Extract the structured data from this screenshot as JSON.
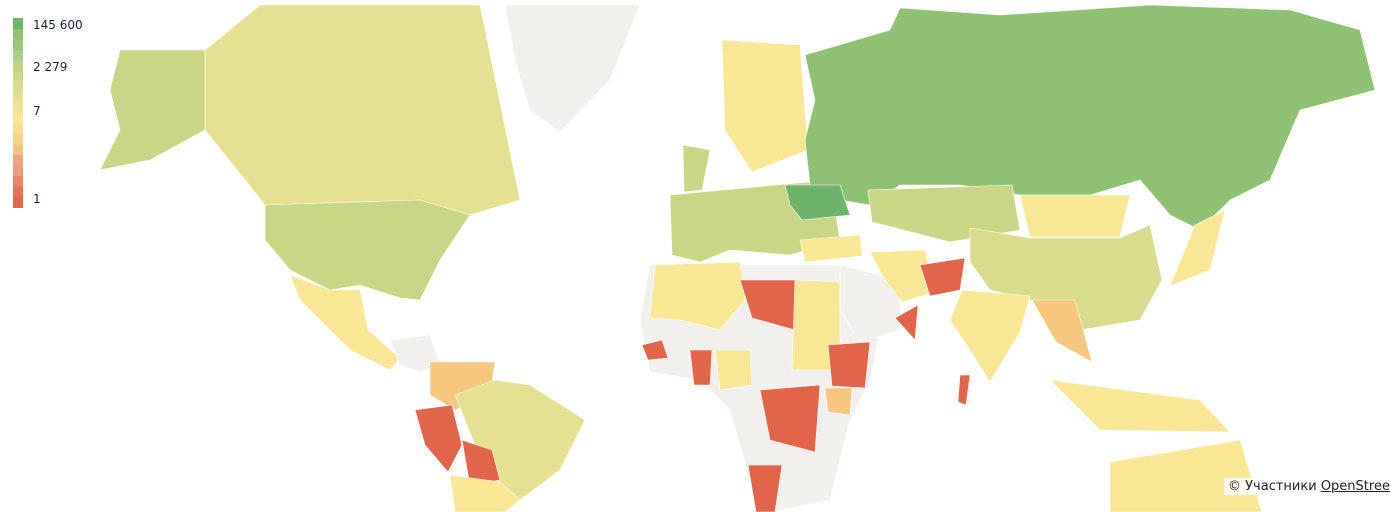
{
  "legend": {
    "labels": [
      "145 600",
      "2 279",
      "7",
      "1"
    ],
    "colors": [
      "#6db36a",
      "#8fc173",
      "#9dc67c",
      "#aacd89",
      "#bfd283",
      "#cbd78a",
      "#d8dc8e",
      "#e4df92",
      "#ede296",
      "#f9e796",
      "#fcdf8a",
      "#fbd487",
      "#f7c383",
      "#f0a47f",
      "#ee9a7c",
      "#ea8568",
      "#e6705a",
      "#e2644b"
    ]
  },
  "palette": {
    "dark_green": "#6db36a",
    "green": "#8fc173",
    "light_green": "#c9d686",
    "olive": "#d9dc8c",
    "yellow_green": "#e6e191",
    "yellow": "#f9e796",
    "orange": "#f7c67f",
    "red": "#e2654a",
    "no_data": "#f1f0ed"
  },
  "regions": [
    {
      "id": "russia",
      "level": "green"
    },
    {
      "id": "greenland",
      "level": "no_data"
    },
    {
      "id": "canada",
      "level": "yellow_green"
    },
    {
      "id": "alaska",
      "level": "light_green"
    },
    {
      "id": "usa",
      "level": "light_green"
    },
    {
      "id": "mexico",
      "level": "yellow"
    },
    {
      "id": "central-america",
      "level": "no_data"
    },
    {
      "id": "colombia-venezuela",
      "level": "orange"
    },
    {
      "id": "brazil",
      "level": "yellow_green"
    },
    {
      "id": "peru",
      "level": "red"
    },
    {
      "id": "bolivia",
      "level": "red"
    },
    {
      "id": "southern-cone",
      "level": "yellow"
    },
    {
      "id": "africa",
      "level": "no_data"
    },
    {
      "id": "north-africa",
      "level": "yellow"
    },
    {
      "id": "libya",
      "level": "red"
    },
    {
      "id": "sudan",
      "level": "yellow"
    },
    {
      "id": "ethiopia",
      "level": "red"
    },
    {
      "id": "nigeria",
      "level": "yellow"
    },
    {
      "id": "ghana",
      "level": "red"
    },
    {
      "id": "west-africa-coast",
      "level": "red"
    },
    {
      "id": "drc",
      "level": "red"
    },
    {
      "id": "namibia",
      "level": "red"
    },
    {
      "id": "kenya",
      "level": "orange"
    },
    {
      "id": "madagascar",
      "level": "red"
    },
    {
      "id": "europe",
      "level": "light_green"
    },
    {
      "id": "scandinavia",
      "level": "yellow"
    },
    {
      "id": "uk",
      "level": "light_green"
    },
    {
      "id": "ukraine",
      "level": "dark_green"
    },
    {
      "id": "turkey",
      "level": "yellow"
    },
    {
      "id": "iran",
      "level": "yellow"
    },
    {
      "id": "saudi-arabia",
      "level": "no_data"
    },
    {
      "id": "afghanistan",
      "level": "red"
    },
    {
      "id": "oman",
      "level": "red"
    },
    {
      "id": "kazakhstan",
      "level": "light_green"
    },
    {
      "id": "mongolia",
      "level": "yellow"
    },
    {
      "id": "china",
      "level": "olive"
    },
    {
      "id": "india",
      "level": "yellow"
    },
    {
      "id": "southeast-asia",
      "level": "orange"
    },
    {
      "id": "indonesia",
      "level": "yellow"
    },
    {
      "id": "japan",
      "level": "yellow"
    },
    {
      "id": "australia",
      "level": "yellow"
    }
  ],
  "attribution": {
    "prefix": "© Участники ",
    "link": "OpenStreetMap"
  }
}
